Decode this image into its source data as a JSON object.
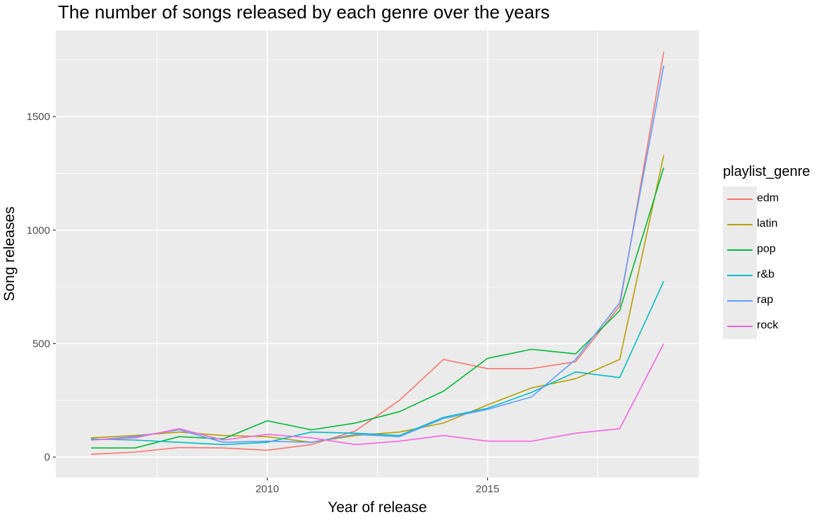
{
  "chart_data": {
    "type": "line",
    "title": "The number of songs released by each genre over the years",
    "xlabel": "Year of release",
    "ylabel": "Song releases",
    "x": [
      2006,
      2007,
      2008,
      2009,
      2010,
      2011,
      2012,
      2013,
      2014,
      2015,
      2016,
      2017,
      2018,
      2019
    ],
    "xlim": [
      2005.2,
      2019.8
    ],
    "ylim": [
      -90,
      1880
    ],
    "x_ticks": [
      2010,
      2015
    ],
    "y_ticks": [
      0,
      500,
      1000,
      1500
    ],
    "grid": true,
    "legend_title": "playlist_genre",
    "legend_position": "right",
    "series": [
      {
        "name": "edm",
        "color": "#F8766D",
        "values": [
          12,
          22,
          42,
          40,
          30,
          55,
          115,
          250,
          430,
          390,
          390,
          420,
          665,
          1785
        ]
      },
      {
        "name": "latin",
        "color": "#B79F00",
        "values": [
          85,
          95,
          110,
          95,
          90,
          65,
          95,
          110,
          150,
          230,
          305,
          345,
          430,
          1330
        ]
      },
      {
        "name": "pop",
        "color": "#00BA38",
        "values": [
          40,
          40,
          90,
          80,
          160,
          120,
          150,
          200,
          290,
          435,
          475,
          455,
          645,
          1275
        ]
      },
      {
        "name": "r&b",
        "color": "#00BFC4",
        "values": [
          80,
          75,
          65,
          55,
          65,
          110,
          105,
          95,
          175,
          215,
          285,
          375,
          350,
          775
        ]
      },
      {
        "name": "rap",
        "color": "#619CFF",
        "values": [
          75,
          90,
          120,
          65,
          70,
          65,
          100,
          90,
          170,
          210,
          265,
          430,
          680,
          1725
        ]
      },
      {
        "name": "rock",
        "color": "#F564E3",
        "values": [
          75,
          85,
          125,
          75,
          100,
          85,
          55,
          70,
          95,
          70,
          70,
          105,
          125,
          500
        ]
      }
    ]
  }
}
